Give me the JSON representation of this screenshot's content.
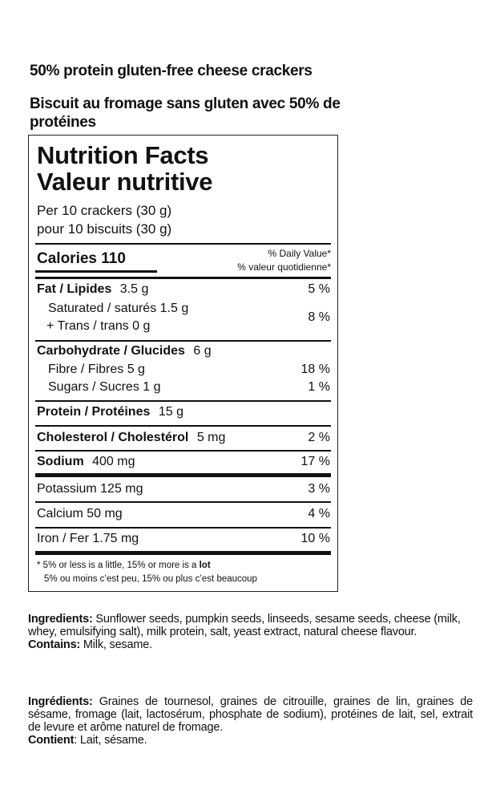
{
  "product": {
    "title_en": "50% protein gluten-free cheese crackers",
    "title_fr": "Biscuit au fromage sans gluten avec 50% de protéines"
  },
  "nutrition": {
    "heading_en": "Nutrition Facts",
    "heading_fr": "Valeur nutritive",
    "serving_en": "Per 10 crackers (30 g)",
    "serving_fr": "pour 10 biscuits (30 g)",
    "calories": "Calories 110",
    "dv_header_en": "% Daily Value*",
    "dv_header_fr": "% valeur quotidienne*",
    "fat": {
      "label": "Fat / Lipides",
      "amount": "3.5 g",
      "pct": "5 %"
    },
    "saturated": {
      "label": "Saturated / saturés 1.5 g",
      "pct": "8 %"
    },
    "trans": {
      "label": "+ Trans / trans 0 g"
    },
    "carb": {
      "label": "Carbohydrate / Glucides",
      "amount": "6 g"
    },
    "fibre": {
      "label": "Fibre / Fibres 5 g",
      "pct": "18 %"
    },
    "sugars": {
      "label": "Sugars / Sucres 1 g",
      "pct": "1 %"
    },
    "protein": {
      "label": "Protein / Protéines",
      "amount": "15 g"
    },
    "cholesterol": {
      "label": "Cholesterol / Cholestérol",
      "amount": "5 mg",
      "pct": "2 %"
    },
    "sodium": {
      "label": "Sodium",
      "amount": "400 mg",
      "pct": "17 %"
    },
    "potassium": {
      "label": "Potassium 125 mg",
      "pct": "3 %"
    },
    "calcium": {
      "label": "Calcium 50 mg",
      "pct": "4 %"
    },
    "iron": {
      "label": "Iron / Fer 1.75 mg",
      "pct": "10 %"
    },
    "footnote_en_a": "* 5% or less is a little, 15% or more is a ",
    "footnote_en_b": "lot",
    "footnote_fr_a": "5% ou moins c’est peu, 15% ou plus c’est ",
    "footnote_fr_b": "beaucoup"
  },
  "ingredients_en": {
    "label": "Ingredients:",
    "text": " Sunflower seeds, pumpkin seeds, linseeds, sesame seeds, cheese (milk, whey, emulsifying salt), milk protein, salt, yeast extract, natural cheese flavour.",
    "contains_label": "Contains:",
    "contains_text": " Milk, sesame."
  },
  "ingredients_fr": {
    "label": "Ingrédients:",
    "text": " Graines de tournesol, graines de citrouille, graines de lin, graines de sésame, fromage (lait, lactosérum, phosphate de sodium), protéines de lait, sel, extrait de levure et arôme naturel de fromage.",
    "contains_label": "Contient",
    "contains_text": ": Lait, sésame."
  }
}
